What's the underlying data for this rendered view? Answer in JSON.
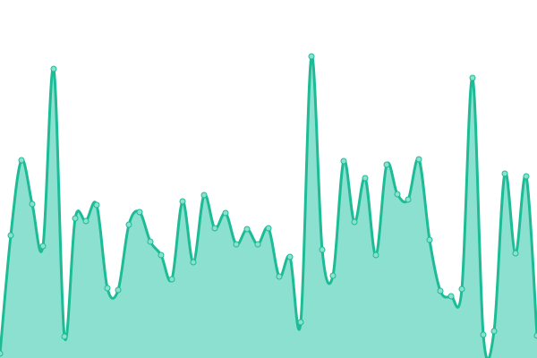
{
  "chart_data": {
    "type": "area",
    "title": "",
    "xlabel": "",
    "ylabel": "",
    "grid": false,
    "axes_visible": false,
    "legend": "none",
    "curve": "smooth",
    "ylim": [
      0,
      400
    ],
    "x": [
      0,
      1,
      2,
      3,
      4,
      5,
      6,
      7,
      8,
      9,
      10,
      11,
      12,
      13,
      14,
      15,
      16,
      17,
      18,
      19,
      20,
      21,
      22,
      23,
      24,
      25,
      26,
      27,
      28,
      29,
      30,
      31,
      32,
      33,
      34,
      35,
      36,
      37,
      38,
      39,
      40,
      41,
      42,
      43,
      44,
      45,
      46,
      47,
      48,
      49,
      50
    ],
    "values": [
      5,
      137,
      221,
      172,
      125,
      323,
      24,
      156,
      153,
      171,
      78,
      76,
      149,
      163,
      130,
      115,
      88,
      175,
      107,
      182,
      145,
      162,
      127,
      144,
      127,
      145,
      91,
      113,
      40,
      337,
      121,
      92,
      220,
      152,
      201,
      115,
      216,
      183,
      177,
      222,
      132,
      75,
      69,
      77,
      313,
      26,
      30,
      206,
      117,
      203,
      25
    ]
  },
  "colors": {
    "line": "#1dbc96",
    "fill": "#8be0cf",
    "marker_fill": "#8be0cf",
    "marker_stroke": "#1dbc96"
  }
}
